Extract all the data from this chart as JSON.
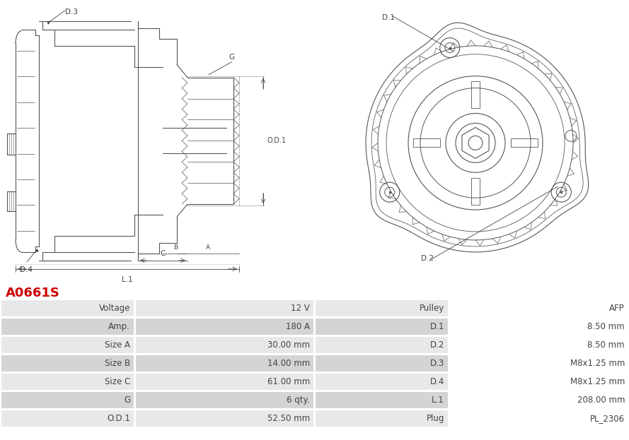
{
  "title": "A0661S",
  "title_color": "#cc0000",
  "table_headers_left": [
    "Voltage",
    "Amp.",
    "Size A",
    "Size B",
    "Size C",
    "G",
    "O.D.1"
  ],
  "table_values_left": [
    "12 V",
    "180 A",
    "30.00 mm",
    "14.00 mm",
    "61.00 mm",
    "6 qty.",
    "52.50 mm"
  ],
  "table_headers_right": [
    "Pulley",
    "D.1",
    "D.2",
    "D.3",
    "D.4",
    "L.1",
    "Plug"
  ],
  "table_values_right": [
    "AFP",
    "8.50 mm",
    "8.50 mm",
    "M8x1.25 mm",
    "M8x1.25 mm",
    "208.00 mm",
    "PL_2306"
  ],
  "row_colors": [
    "#e8e8e8",
    "#d4d4d4"
  ],
  "border_color": "#ffffff",
  "text_color": "#444444",
  "background_color": "#ffffff",
  "gc": "#555555",
  "dim_color": "#444444",
  "lw": 0.8,
  "fig_w": 8.89,
  "fig_h": 6.23,
  "dpi": 100
}
